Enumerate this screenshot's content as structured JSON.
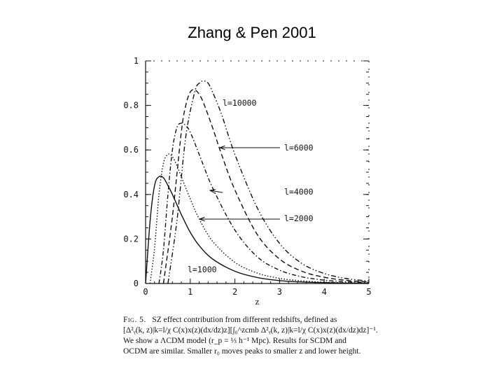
{
  "slide": {
    "title": "Zhang & Pen 2001"
  },
  "chart_data": {
    "type": "line",
    "xlabel": "z",
    "ylabel": "",
    "xlim": [
      0,
      5
    ],
    "ylim": [
      0,
      1
    ],
    "xticks": [
      "0",
      "1",
      "2",
      "3",
      "4",
      "5"
    ],
    "yticks": [
      "0",
      "0.2",
      "0.4",
      "0.6",
      "0.8",
      "1"
    ],
    "series": [
      {
        "name": "l=1000",
        "style": "solid",
        "x": [
          0,
          0.1,
          0.2,
          0.3,
          0.4,
          0.5,
          0.6,
          0.8,
          1.0,
          1.2,
          1.5,
          2.0,
          2.5,
          3.0,
          3.5,
          4.0,
          4.5,
          5.0
        ],
        "y": [
          0.0,
          0.28,
          0.44,
          0.48,
          0.475,
          0.44,
          0.4,
          0.31,
          0.23,
          0.17,
          0.11,
          0.055,
          0.027,
          0.013,
          0.007,
          0.004,
          0.002,
          0.001
        ]
      },
      {
        "name": "l=2000",
        "style": "dotted",
        "x": [
          0.1,
          0.2,
          0.3,
          0.4,
          0.5,
          0.6,
          0.7,
          0.8,
          1.0,
          1.2,
          1.5,
          2.0,
          2.5,
          3.0,
          3.5,
          4.0,
          4.5,
          5.0
        ],
        "y": [
          0.0,
          0.16,
          0.4,
          0.54,
          0.58,
          0.57,
          0.53,
          0.48,
          0.38,
          0.29,
          0.19,
          0.095,
          0.047,
          0.023,
          0.012,
          0.006,
          0.003,
          0.002
        ]
      },
      {
        "name": "l=4000",
        "style": "dash-dot",
        "x": [
          0.3,
          0.4,
          0.5,
          0.6,
          0.7,
          0.8,
          0.9,
          1.0,
          1.2,
          1.5,
          2.0,
          2.5,
          3.0,
          3.5,
          4.0,
          4.5,
          5.0
        ],
        "y": [
          0.0,
          0.15,
          0.4,
          0.6,
          0.7,
          0.72,
          0.71,
          0.68,
          0.58,
          0.43,
          0.24,
          0.12,
          0.06,
          0.03,
          0.015,
          0.008,
          0.004
        ]
      },
      {
        "name": "l=6000",
        "style": "dashed",
        "x": [
          0.4,
          0.6,
          0.8,
          0.9,
          1.0,
          1.1,
          1.2,
          1.3,
          1.5,
          1.7,
          2.0,
          2.5,
          3.0,
          3.5,
          4.0,
          4.5,
          5.0
        ],
        "y": [
          0.0,
          0.3,
          0.68,
          0.8,
          0.86,
          0.87,
          0.85,
          0.81,
          0.7,
          0.58,
          0.42,
          0.22,
          0.11,
          0.055,
          0.028,
          0.014,
          0.007
        ]
      },
      {
        "name": "l=10000",
        "style": "dash-dot-dot",
        "x": [
          0.5,
          0.7,
          0.9,
          1.1,
          1.2,
          1.3,
          1.4,
          1.5,
          1.7,
          2.0,
          2.5,
          3.0,
          3.5,
          4.0,
          4.5,
          5.0
        ],
        "y": [
          0.0,
          0.28,
          0.66,
          0.86,
          0.9,
          0.91,
          0.9,
          0.86,
          0.76,
          0.58,
          0.34,
          0.18,
          0.09,
          0.045,
          0.022,
          0.011
        ]
      }
    ],
    "annotations": [
      "l=10000",
      "l=6000",
      "l=4000",
      "l=2000",
      "l=1000"
    ]
  },
  "caption": {
    "fig_label": "Fig. 5.",
    "line1": "SZ effect contribution from different redshifts, defined as",
    "line2": "[Δ²ᵧ(k, z)|k=l/χ C(x)x(z)(dx/dz)z][∫₀^zcmb Δ²ᵧ(k, z)|k=l/χ C(x)x(z)(dx/dz)dz]⁻¹.",
    "line3": "We show a ΛCDM model (r_p = ⅓ h⁻¹ Mpc). Results for SCDM and",
    "line4": "OCDM are similar. Smaller r₀ moves peaks to smaller z and lower height."
  }
}
